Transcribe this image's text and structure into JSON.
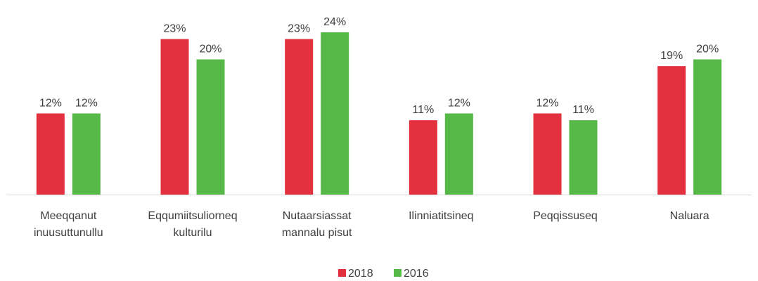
{
  "chart_data": {
    "type": "bar",
    "categories": [
      [
        "Meeqqanut",
        "inuusuttunullu"
      ],
      [
        "Eqqumiitsuliorneq",
        "kulturilu"
      ],
      [
        "Nutaarsiassat",
        "mannalu pisut"
      ],
      [
        "Ilinniatitsineq"
      ],
      [
        "Peqqissuseq"
      ],
      [
        "Naluara"
      ]
    ],
    "series": [
      {
        "name": "2018",
        "color": "#e3303f",
        "values": [
          12,
          23,
          23,
          11,
          12,
          19
        ],
        "value_labels": [
          "12%",
          "23%",
          "23%",
          "11%",
          "12%",
          "19%"
        ]
      },
      {
        "name": "2016",
        "color": "#55b847",
        "values": [
          12,
          20,
          24,
          12,
          11,
          20
        ],
        "value_labels": [
          "12%",
          "20%",
          "24%",
          "12%",
          "11%",
          "20%"
        ]
      }
    ],
    "legend": "bottom"
  }
}
